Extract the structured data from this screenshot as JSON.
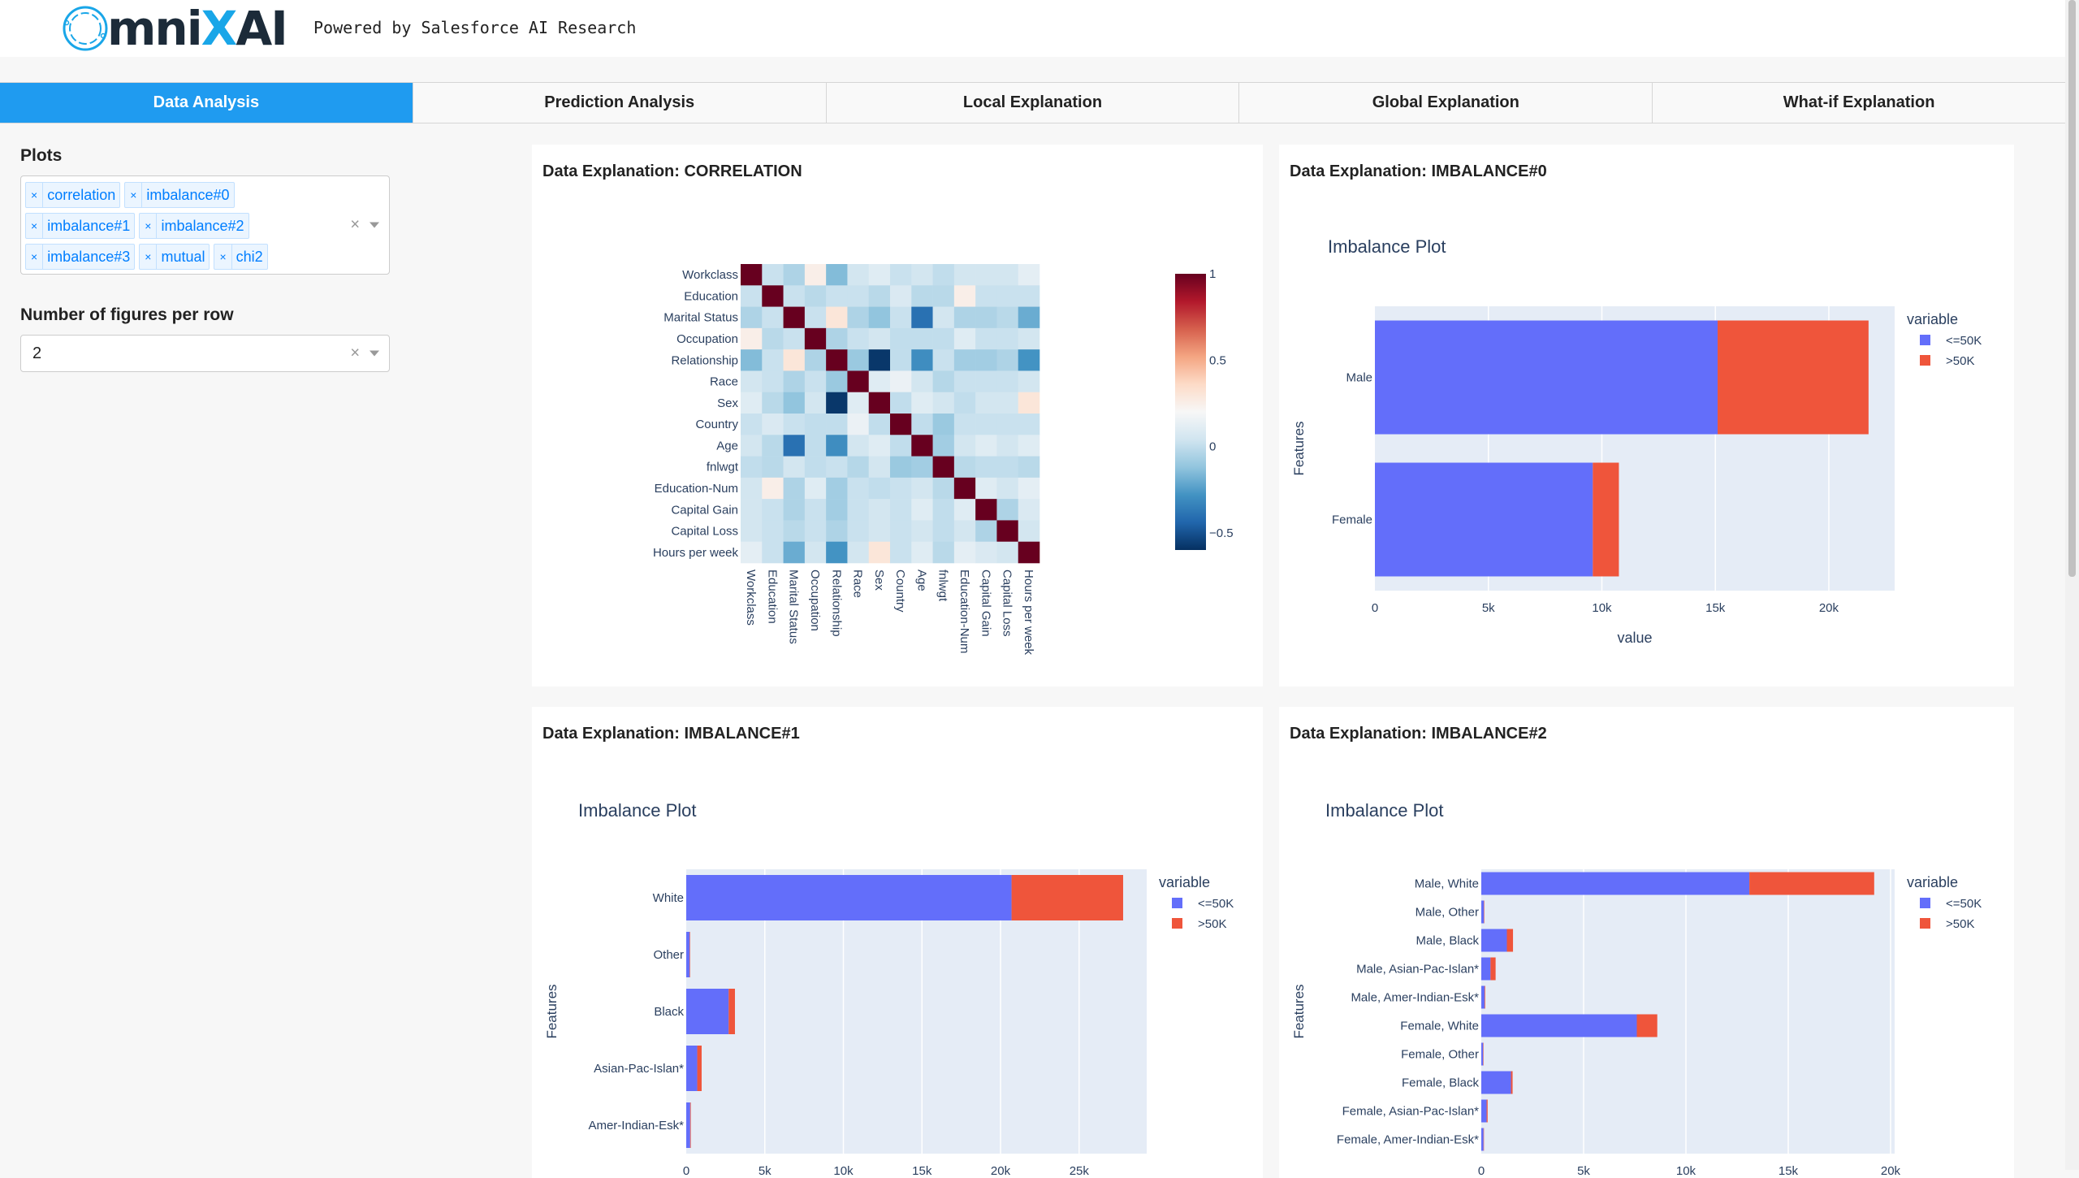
{
  "header": {
    "logo_text": "OmniXAI",
    "powered_by": "Powered by Salesforce AI Research"
  },
  "tabs": [
    {
      "label": "Data Analysis",
      "active": true
    },
    {
      "label": "Prediction Analysis"
    },
    {
      "label": "Local Explanation"
    },
    {
      "label": "Global Explanation"
    },
    {
      "label": "What-if Explanation"
    }
  ],
  "sidebar": {
    "plots_label": "Plots",
    "plots_selected": [
      "correlation",
      "imbalance#0",
      "imbalance#1",
      "imbalance#2",
      "imbalance#3",
      "mutual",
      "chi2"
    ],
    "figures_per_row_label": "Number of figures per row",
    "figures_per_row_value": "2",
    "clear_symbol": "×"
  },
  "colors": {
    "accent": "#1f9bf0",
    "lte50k": "#636efa",
    "gt50k": "#ef553b",
    "plot_bg": "#e5ecf6"
  },
  "cards": [
    {
      "title": "Data Explanation: CORRELATION"
    },
    {
      "title": "Data Explanation: IMBALANCE#0"
    },
    {
      "title": "Data Explanation: IMBALANCE#1"
    },
    {
      "title": "Data Explanation: IMBALANCE#2"
    }
  ],
  "chart_data": [
    {
      "type": "heatmap",
      "labels": [
        "Workclass",
        "Education",
        "Marital Status",
        "Occupation",
        "Relationship",
        "Race",
        "Sex",
        "Country",
        "Age",
        "fnlwgt",
        "Education-Num",
        "Capital Gain",
        "Capital Loss",
        "Hours per week"
      ],
      "z": [
        [
          1,
          0.02,
          -0.05,
          0.25,
          -0.15,
          0.05,
          0.1,
          0.02,
          0.05,
          0,
          0.05,
          0.05,
          0.05,
          0.12
        ],
        [
          0.02,
          1,
          0.02,
          -0.02,
          0.02,
          0.02,
          -0.02,
          0.08,
          -0.02,
          -0.02,
          0.25,
          0.02,
          0.02,
          0.02
        ],
        [
          -0.05,
          0.02,
          1,
          0.02,
          0.3,
          -0.05,
          -0.12,
          0.02,
          -0.4,
          0.05,
          -0.05,
          -0.05,
          -0.02,
          -0.2
        ],
        [
          0.25,
          -0.02,
          0.02,
          1,
          -0.05,
          0.02,
          0.05,
          0,
          0,
          0,
          0.1,
          0.02,
          0.02,
          0.05
        ],
        [
          -0.15,
          0.02,
          0.3,
          -0.05,
          1,
          -0.1,
          -0.58,
          0,
          -0.3,
          0.02,
          -0.08,
          -0.08,
          -0.05,
          -0.28
        ],
        [
          0.05,
          0.02,
          -0.05,
          0.02,
          -0.1,
          1,
          0.1,
          0.15,
          0.05,
          -0.03,
          0.02,
          0.02,
          0.02,
          0.05
        ],
        [
          0.1,
          -0.02,
          -0.12,
          0.05,
          -0.58,
          0.1,
          1,
          0,
          0.1,
          0.05,
          0,
          0.05,
          0.05,
          0.3
        ],
        [
          0.02,
          0.08,
          0.02,
          0,
          0,
          0.15,
          0,
          1,
          0,
          -0.1,
          0.02,
          0.02,
          0.02,
          0.02
        ],
        [
          0.05,
          -0.02,
          -0.4,
          0,
          -0.3,
          0.05,
          0.1,
          0,
          1,
          -0.08,
          0.05,
          0.1,
          0.05,
          0.1
        ],
        [
          0,
          -0.02,
          0.05,
          0,
          0.02,
          -0.03,
          0.05,
          -0.1,
          -0.08,
          1,
          -0.02,
          0,
          0,
          -0.02
        ],
        [
          0.05,
          0.25,
          -0.05,
          0.1,
          -0.08,
          0.02,
          0,
          0.02,
          0.05,
          -0.02,
          1,
          0.1,
          0.05,
          0.12
        ],
        [
          0.05,
          0.02,
          -0.05,
          0.02,
          -0.08,
          0.02,
          0.05,
          0.02,
          0.1,
          0,
          0.1,
          1,
          -0.05,
          0.08
        ],
        [
          0.05,
          0.02,
          -0.02,
          0.02,
          -0.05,
          0.02,
          0.05,
          0.02,
          0.05,
          0,
          0.05,
          -0.05,
          1,
          0.05
        ],
        [
          0.12,
          0.02,
          -0.2,
          0.05,
          -0.28,
          0.05,
          0.3,
          0.02,
          0.1,
          -0.02,
          0.12,
          0.08,
          0.05,
          1
        ]
      ],
      "zrange": [
        -0.6,
        1
      ],
      "colorbar_ticks": [
        {
          "v": 1,
          "label": "1"
        },
        {
          "v": 0.5,
          "label": "0.5"
        },
        {
          "v": 0,
          "label": "0"
        },
        {
          "v": -0.5,
          "label": "−0.5"
        }
      ],
      "colorscale": "RdBu reversed"
    },
    {
      "type": "bar",
      "orientation": "horizontal",
      "stacked": true,
      "title": "Imbalance Plot",
      "ylabel": "Features",
      "xlabel": "value",
      "legend_title": "variable",
      "legend": "top-right",
      "categories": [
        "Male",
        "Female"
      ],
      "series": [
        {
          "name": "<=50K",
          "values": [
            15100,
            9600
          ]
        },
        {
          "name": ">50K",
          "values": [
            6650,
            1150
          ]
        }
      ],
      "xlim": [
        0,
        22900
      ],
      "xticks": [
        {
          "v": 0,
          "label": "0"
        },
        {
          "v": 5000,
          "label": "5k"
        },
        {
          "v": 10000,
          "label": "10k"
        },
        {
          "v": 15000,
          "label": "15k"
        },
        {
          "v": 20000,
          "label": "20k"
        }
      ]
    },
    {
      "type": "bar",
      "orientation": "horizontal",
      "stacked": true,
      "title": "Imbalance Plot",
      "ylabel": "Features",
      "legend_title": "variable",
      "legend": "top-right",
      "categories": [
        "White",
        "Other",
        "Black",
        "Asian-Pac-Islan*",
        "Amer-Indian-Esk*"
      ],
      "series": [
        {
          "name": "<=50K",
          "values": [
            20700,
            220,
            2700,
            700,
            250
          ]
        },
        {
          "name": ">50K",
          "values": [
            7100,
            30,
            400,
            280,
            40
          ]
        }
      ],
      "xlim": [
        0,
        29300
      ],
      "xticks": [
        {
          "v": 0,
          "label": "0"
        },
        {
          "v": 5000,
          "label": "5k"
        },
        {
          "v": 10000,
          "label": "10k"
        },
        {
          "v": 15000,
          "label": "15k"
        },
        {
          "v": 20000,
          "label": "20k"
        },
        {
          "v": 25000,
          "label": "25k"
        }
      ]
    },
    {
      "type": "bar",
      "orientation": "horizontal",
      "stacked": true,
      "title": "Imbalance Plot",
      "ylabel": "Features",
      "legend_title": "variable",
      "legend": "top-right",
      "categories": [
        "Male, White",
        "Male, Other",
        "Male, Black",
        "Male, Asian-Pac-Islan*",
        "Male, Amer-Indian-Esk*",
        "Female, White",
        "Female, Other",
        "Female, Black",
        "Female, Asian-Pac-Islan*",
        "Female, Amer-Indian-Esk*"
      ],
      "series": [
        {
          "name": "<=50K",
          "values": [
            13100,
            130,
            1250,
            450,
            160,
            7600,
            90,
            1450,
            260,
            110
          ]
        },
        {
          "name": ">50K",
          "values": [
            6100,
            20,
            300,
            250,
            30,
            1000,
            10,
            80,
            50,
            10
          ]
        }
      ],
      "xlim": [
        0,
        20200
      ],
      "xticks": [
        {
          "v": 0,
          "label": "0"
        },
        {
          "v": 5000,
          "label": "5k"
        },
        {
          "v": 10000,
          "label": "10k"
        },
        {
          "v": 15000,
          "label": "15k"
        },
        {
          "v": 20000,
          "label": "20k"
        }
      ]
    }
  ]
}
